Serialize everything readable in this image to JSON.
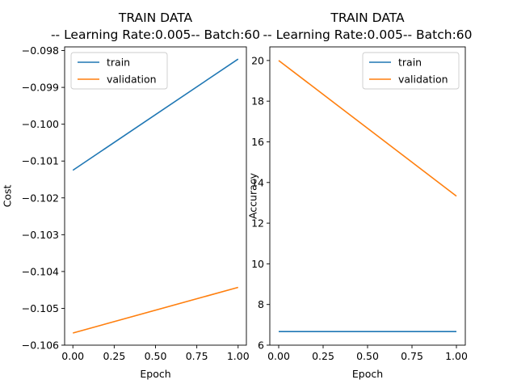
{
  "chart_data": [
    {
      "type": "line",
      "title": "TRAIN DATA",
      "subtitle": "-- Learning Rate:0.005-- Batch:60",
      "xlabel": "Epoch",
      "ylabel": "Cost",
      "xlim": [
        -0.05,
        1.05
      ],
      "ylim": [
        -0.106,
        -0.0979
      ],
      "xticks": [
        0.0,
        0.25,
        0.5,
        0.75,
        1.0
      ],
      "xtick_labels": [
        "0.00",
        "0.25",
        "0.50",
        "0.75",
        "1.00"
      ],
      "yticks": [
        -0.106,
        -0.105,
        -0.104,
        -0.103,
        -0.102,
        -0.101,
        -0.1,
        -0.099,
        -0.098
      ],
      "ytick_labels": [
        "−0.106",
        "−0.105",
        "−0.104",
        "−0.103",
        "−0.102",
        "−0.101",
        "−0.100",
        "−0.099",
        "−0.098"
      ],
      "legend_position": "upper-left",
      "grid": false,
      "series": [
        {
          "name": "train",
          "color": "#1f77b4",
          "x": [
            0,
            1
          ],
          "y": [
            -0.10125,
            -0.09823
          ]
        },
        {
          "name": "validation",
          "color": "#ff7f0e",
          "x": [
            0,
            1
          ],
          "y": [
            -0.10567,
            -0.10443
          ]
        }
      ]
    },
    {
      "type": "line",
      "title": "TRAIN DATA",
      "subtitle": "-- Learning Rate:0.005-- Batch:60",
      "xlabel": "Epoch",
      "ylabel": "Accuracy",
      "xlim": [
        -0.05,
        1.05
      ],
      "ylim": [
        6.0,
        20.67
      ],
      "xticks": [
        0.0,
        0.25,
        0.5,
        0.75,
        1.0
      ],
      "xtick_labels": [
        "0.00",
        "0.25",
        "0.50",
        "0.75",
        "1.00"
      ],
      "yticks": [
        6,
        8,
        10,
        12,
        14,
        16,
        18,
        20
      ],
      "ytick_labels": [
        "6",
        "8",
        "10",
        "12",
        "14",
        "16",
        "18",
        "20"
      ],
      "legend_position": "upper-right",
      "grid": false,
      "series": [
        {
          "name": "train",
          "color": "#1f77b4",
          "x": [
            0,
            1
          ],
          "y": [
            6.67,
            6.67
          ]
        },
        {
          "name": "validation",
          "color": "#ff7f0e",
          "x": [
            0,
            1
          ],
          "y": [
            20.0,
            13.33
          ]
        }
      ]
    }
  ]
}
